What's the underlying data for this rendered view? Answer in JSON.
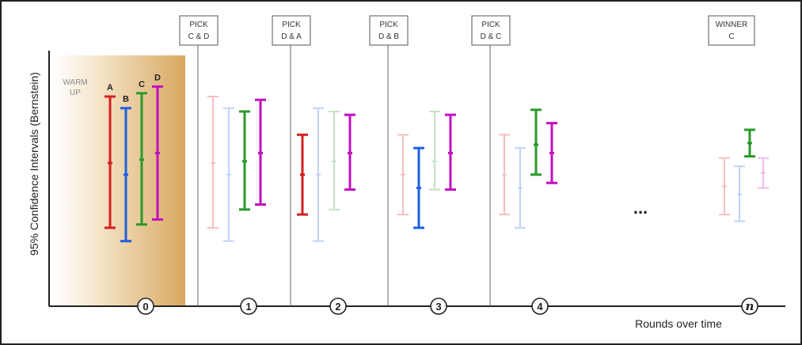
{
  "yaxis_label": "95% Confidence Intervals (Bernstein)",
  "xaxis_label": "Rounds over time",
  "warmup_label": [
    "WARM",
    "UP"
  ],
  "ellipsis": "...",
  "colors": {
    "A": "#d42020",
    "B": "#2060e0",
    "C": "#2a9a2a",
    "D": "#c010c0"
  },
  "rounds": [
    {
      "label": "0",
      "pick": null
    },
    {
      "label": "1",
      "pick": [
        "PICK",
        "C & D"
      ]
    },
    {
      "label": "2",
      "pick": [
        "PICK",
        "D & A"
      ]
    },
    {
      "label": "3",
      "pick": [
        "PICK",
        "D & B"
      ]
    },
    {
      "label": "4",
      "pick": [
        "PICK",
        "D & C"
      ]
    },
    {
      "label": "n",
      "pick": [
        "WINNER",
        "C"
      ]
    }
  ],
  "arm_labels": [
    "A",
    "B",
    "C",
    "D"
  ],
  "intervals": [
    {
      "round": "0",
      "arm": "A",
      "low": 0.21,
      "high": 1.0,
      "mid": 0.6,
      "faded": false
    },
    {
      "round": "0",
      "arm": "B",
      "low": 0.13,
      "high": 0.93,
      "mid": 0.53,
      "faded": false
    },
    {
      "round": "0",
      "arm": "C",
      "low": 0.23,
      "high": 1.02,
      "mid": 0.62,
      "faded": false
    },
    {
      "round": "0",
      "arm": "D",
      "low": 0.26,
      "high": 1.06,
      "mid": 0.66,
      "faded": false
    },
    {
      "round": "1",
      "arm": "A",
      "low": 0.21,
      "high": 1.0,
      "mid": 0.6,
      "faded": true
    },
    {
      "round": "1",
      "arm": "B",
      "low": 0.13,
      "high": 0.93,
      "mid": 0.53,
      "faded": true
    },
    {
      "round": "1",
      "arm": "C",
      "low": 0.32,
      "high": 0.91,
      "mid": 0.61,
      "faded": false
    },
    {
      "round": "1",
      "arm": "D",
      "low": 0.35,
      "high": 0.98,
      "mid": 0.66,
      "faded": false
    },
    {
      "round": "2",
      "arm": "A",
      "low": 0.29,
      "high": 0.77,
      "mid": 0.53,
      "faded": false
    },
    {
      "round": "2",
      "arm": "B",
      "low": 0.13,
      "high": 0.93,
      "mid": 0.53,
      "faded": true
    },
    {
      "round": "2",
      "arm": "C",
      "low": 0.32,
      "high": 0.91,
      "mid": 0.61,
      "faded": true
    },
    {
      "round": "2",
      "arm": "D",
      "low": 0.44,
      "high": 0.89,
      "mid": 0.66,
      "faded": false
    },
    {
      "round": "3",
      "arm": "A",
      "low": 0.29,
      "high": 0.77,
      "mid": 0.53,
      "faded": true
    },
    {
      "round": "3",
      "arm": "B",
      "low": 0.21,
      "high": 0.69,
      "mid": 0.45,
      "faded": false
    },
    {
      "round": "3",
      "arm": "C",
      "low": 0.44,
      "high": 0.91,
      "mid": 0.61,
      "faded": true
    },
    {
      "round": "3",
      "arm": "D",
      "low": 0.44,
      "high": 0.89,
      "mid": 0.66,
      "faded": false
    },
    {
      "round": "4",
      "arm": "A",
      "low": 0.29,
      "high": 0.77,
      "mid": 0.53,
      "faded": true
    },
    {
      "round": "4",
      "arm": "B",
      "low": 0.21,
      "high": 0.69,
      "mid": 0.45,
      "faded": true
    },
    {
      "round": "4",
      "arm": "C",
      "low": 0.53,
      "high": 0.92,
      "mid": 0.71,
      "faded": false
    },
    {
      "round": "4",
      "arm": "D",
      "low": 0.48,
      "high": 0.84,
      "mid": 0.66,
      "faded": false
    },
    {
      "round": "n",
      "arm": "A",
      "low": 0.29,
      "high": 0.63,
      "mid": 0.46,
      "faded": true
    },
    {
      "round": "n",
      "arm": "B",
      "low": 0.25,
      "high": 0.58,
      "mid": 0.41,
      "faded": true
    },
    {
      "round": "n",
      "arm": "C",
      "low": 0.64,
      "high": 0.8,
      "mid": 0.72,
      "faded": false
    },
    {
      "round": "n",
      "arm": "D",
      "low": 0.45,
      "high": 0.63,
      "mid": 0.54,
      "faded": true
    }
  ]
}
